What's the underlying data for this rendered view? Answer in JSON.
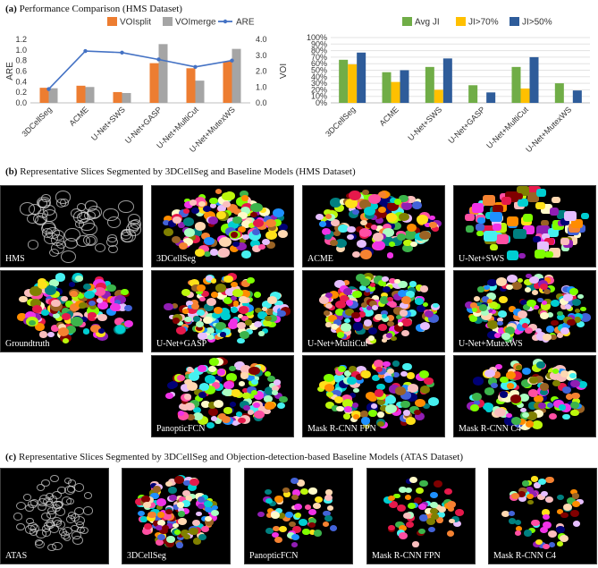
{
  "figure": {
    "panel_a_title": "Performance Comparison (HMS Dataset)",
    "panel_a_label": "(a)",
    "panel_b_title": "Representative Slices Segmented by 3DCellSeg and Baseline Models (HMS Dataset)",
    "panel_b_label": "(b)",
    "panel_c_title": "Representative Slices Segmented by 3DCellSeg and Objection-detection-based Baseline Models (ATAS Dataset)",
    "panel_c_label": "(c)"
  },
  "chart_data": [
    {
      "type": "bar",
      "categories": [
        "3DCellSeg",
        "ACME",
        "U-Net+SWS",
        "U-Net+GASP",
        "U-Net+MultiCut",
        "U-Net+MutexWS"
      ],
      "ylabel": "ARE",
      "y2label": "VOI",
      "ylim": [
        0,
        1.2
      ],
      "y2lim": [
        0,
        4.0
      ],
      "yticks": [
        "0.0",
        "0.2",
        "0.4",
        "0.6",
        "0.8",
        "1.0",
        "1.2"
      ],
      "y2ticks": [
        "0.0",
        "1.0",
        "2.0",
        "3.0",
        "4.0"
      ],
      "legend_position": "top",
      "series": [
        {
          "name": "VOIsplit",
          "kind": "bar",
          "axis": "right",
          "color": "#ed7d31",
          "values": [
            0.95,
            1.08,
            0.68,
            2.5,
            2.18,
            2.62
          ]
        },
        {
          "name": "VOImerge",
          "kind": "bar",
          "axis": "right",
          "color": "#a5a5a5",
          "values": [
            0.92,
            1.0,
            0.62,
            3.7,
            1.4,
            3.4
          ]
        },
        {
          "name": "ARE",
          "kind": "line",
          "axis": "left",
          "color": "#4472c4",
          "values": [
            0.26,
            0.98,
            0.95,
            0.82,
            0.68,
            0.8
          ]
        }
      ]
    },
    {
      "type": "bar",
      "categories": [
        "3DCellSeg",
        "ACME",
        "U-Net+SWS",
        "U-Net+GASP",
        "U-Net+MultiCut",
        "U-Net+MutexWS"
      ],
      "ylim": [
        0,
        100
      ],
      "yticks": [
        "0%",
        "10%",
        "20%",
        "30%",
        "40%",
        "50%",
        "60%",
        "70%",
        "80%",
        "90%",
        "100%"
      ],
      "legend_position": "top",
      "series": [
        {
          "name": "Avg JI",
          "color": "#70ad47",
          "values": [
            66,
            47,
            55,
            27,
            55,
            30
          ]
        },
        {
          "name": "JI>70%",
          "color": "#ffc000",
          "values": [
            59,
            32,
            20,
            0,
            22,
            0
          ]
        },
        {
          "name": "JI>50%",
          "color": "#2e5c9a",
          "values": [
            77,
            50,
            68,
            16,
            70,
            19
          ]
        }
      ]
    }
  ],
  "panel_b": {
    "tiles": [
      {
        "label": "HMS"
      },
      {
        "label": "3DCellSeg"
      },
      {
        "label": "ACME"
      },
      {
        "label": "U-Net+SWS"
      },
      {
        "label": "Groundtruth"
      },
      {
        "label": "U-Net+GASP"
      },
      {
        "label": "U-Net+MultiCut"
      },
      {
        "label": "U-Net+MutexWS"
      },
      {
        "label": "PanopticFCN"
      },
      {
        "label": "Mask R-CNN FPN"
      },
      {
        "label": "Mask R-CNN C4"
      }
    ]
  },
  "panel_c": {
    "tiles": [
      {
        "label": "ATAS"
      },
      {
        "label": "3DCellSeg"
      },
      {
        "label": "PanopticFCN"
      },
      {
        "label": "Mask R-CNN FPN"
      },
      {
        "label": "Mask R-CNN C4"
      }
    ]
  }
}
